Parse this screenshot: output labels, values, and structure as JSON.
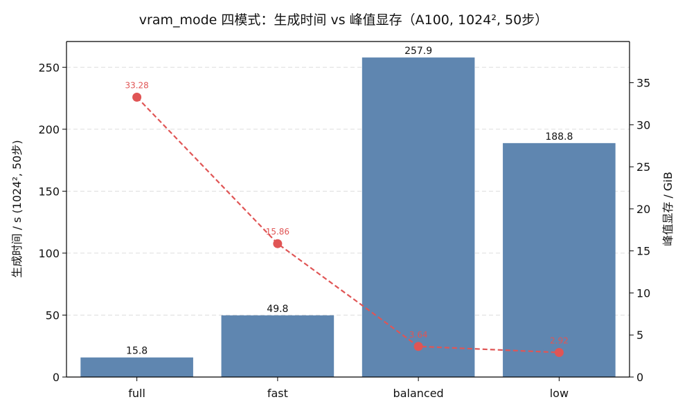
{
  "chart_data": {
    "type": "bar",
    "title": "vram_mode 四模式：生成时间 vs 峰值显存（A100, 1024², 50步）",
    "categories": [
      "full",
      "fast",
      "balanced",
      "low"
    ],
    "series": [
      {
        "kind": "bar",
        "axis": "left",
        "values": [
          15.8,
          49.8,
          257.9,
          188.8
        ],
        "value_labels": [
          "15.8",
          "49.8",
          "257.9",
          "188.8"
        ],
        "color": "#5f86b0"
      },
      {
        "kind": "line",
        "axis": "right",
        "values": [
          33.28,
          15.86,
          3.64,
          2.92
        ],
        "value_labels": [
          "33.28",
          "15.86",
          "3.64",
          "2.92"
        ],
        "color": "#e05555",
        "line_style": "dashed",
        "marker": "circle"
      }
    ],
    "ylabel": "生成时间 / s (1024², 50步)",
    "ylabel_right": "峰值显存 / GiB",
    "ylim": [
      0,
      270.8
    ],
    "ylim_right": [
      0,
      39.9
    ],
    "yticks": [
      0,
      50,
      100,
      150,
      200,
      250
    ],
    "yticks_right": [
      0,
      5,
      10,
      15,
      20,
      25,
      30,
      35
    ],
    "grid": "horizontal dashed",
    "legend": "none"
  }
}
